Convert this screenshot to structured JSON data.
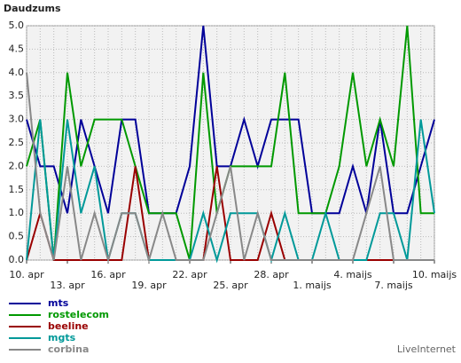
{
  "chart_data": {
    "type": "line",
    "title": "Daudzums",
    "footer": "LiveInternet",
    "categories": [
      "10. apr",
      null,
      null,
      "13. apr",
      null,
      null,
      "16. apr",
      null,
      null,
      "19. apr",
      null,
      null,
      "22. apr",
      null,
      null,
      "25. apr",
      null,
      null,
      "28. apr",
      null,
      null,
      "1. maijs",
      null,
      null,
      "4. maijs",
      null,
      null,
      "7. maijs",
      null,
      null,
      "10. maijs"
    ],
    "ylim": [
      0,
      5
    ],
    "yticks": [
      {
        "value": 0,
        "label": "0.0"
      },
      {
        "value": 0.5,
        "label": "0.5"
      },
      {
        "value": 1,
        "label": "1.0"
      },
      {
        "value": 1.5,
        "label": "1.5"
      },
      {
        "value": 2,
        "label": "2.0"
      },
      {
        "value": 2.5,
        "label": "2.5"
      },
      {
        "value": 3,
        "label": "3.0"
      },
      {
        "value": 3.5,
        "label": "3.5"
      },
      {
        "value": 4,
        "label": "4.0"
      },
      {
        "value": 4.5,
        "label": "4.5"
      },
      {
        "value": 5,
        "label": "5.0"
      }
    ],
    "grid": true,
    "series": [
      {
        "name": "mts",
        "color": "#000099",
        "values": [
          3,
          2,
          2,
          1,
          3,
          2,
          1,
          3,
          3,
          1,
          1,
          1,
          2,
          5,
          2,
          2,
          3,
          2,
          3,
          3,
          3,
          1,
          1,
          1,
          2,
          1,
          3,
          1,
          1,
          2,
          3
        ]
      },
      {
        "name": "rostelecom",
        "color": "#009900",
        "values": [
          2,
          3,
          0,
          4,
          2,
          3,
          3,
          3,
          2,
          1,
          1,
          1,
          0,
          4,
          1,
          2,
          2,
          2,
          2,
          4,
          1,
          1,
          1,
          2,
          4,
          2,
          3,
          2,
          5,
          1,
          1
        ]
      },
      {
        "name": "beeline",
        "color": "#990000",
        "values": [
          0,
          1,
          0,
          0,
          0,
          0,
          0,
          0,
          2,
          0,
          0,
          0,
          0,
          0,
          2,
          0,
          0,
          0,
          1,
          0,
          0,
          0,
          0,
          0,
          0,
          0,
          0,
          0,
          0,
          0,
          0
        ]
      },
      {
        "name": "mgts",
        "color": "#009999",
        "values": [
          0,
          3,
          0,
          3,
          1,
          2,
          0,
          1,
          1,
          0,
          0,
          0,
          0,
          1,
          0,
          1,
          1,
          1,
          0,
          1,
          0,
          0,
          1,
          0,
          0,
          0,
          1,
          1,
          0,
          3,
          1
        ]
      },
      {
        "name": "corbina",
        "color": "#888888",
        "values": [
          4,
          1,
          0,
          2,
          0,
          1,
          0,
          1,
          1,
          0,
          1,
          0,
          0,
          0,
          1,
          2,
          0,
          1,
          0,
          0,
          0,
          0,
          0,
          0,
          0,
          1,
          2,
          0,
          0,
          0,
          0
        ]
      }
    ]
  }
}
